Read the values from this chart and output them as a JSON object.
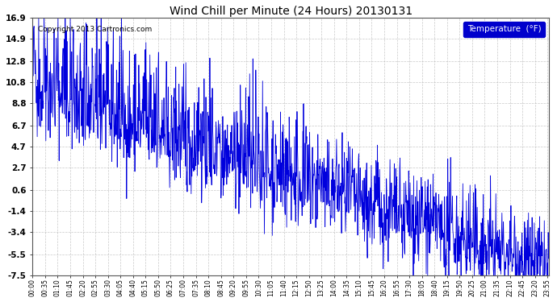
{
  "title": "Wind Chill per Minute (24 Hours) 20130131",
  "copyright": "Copyright 2013 Cartronics.com",
  "legend_label": "Temperature  (°F)",
  "background_color": "#ffffff",
  "plot_bg_color": "#ffffff",
  "line_color": "#0000dd",
  "grid_color": "#bbbbbb",
  "ylim": [
    -7.5,
    16.9
  ],
  "yticks": [
    16.9,
    14.9,
    12.8,
    10.8,
    8.8,
    6.7,
    4.7,
    2.7,
    0.6,
    -1.4,
    -3.4,
    -5.5,
    -7.5
  ],
  "total_minutes": 1440,
  "tick_interval": 35,
  "seed": 42
}
